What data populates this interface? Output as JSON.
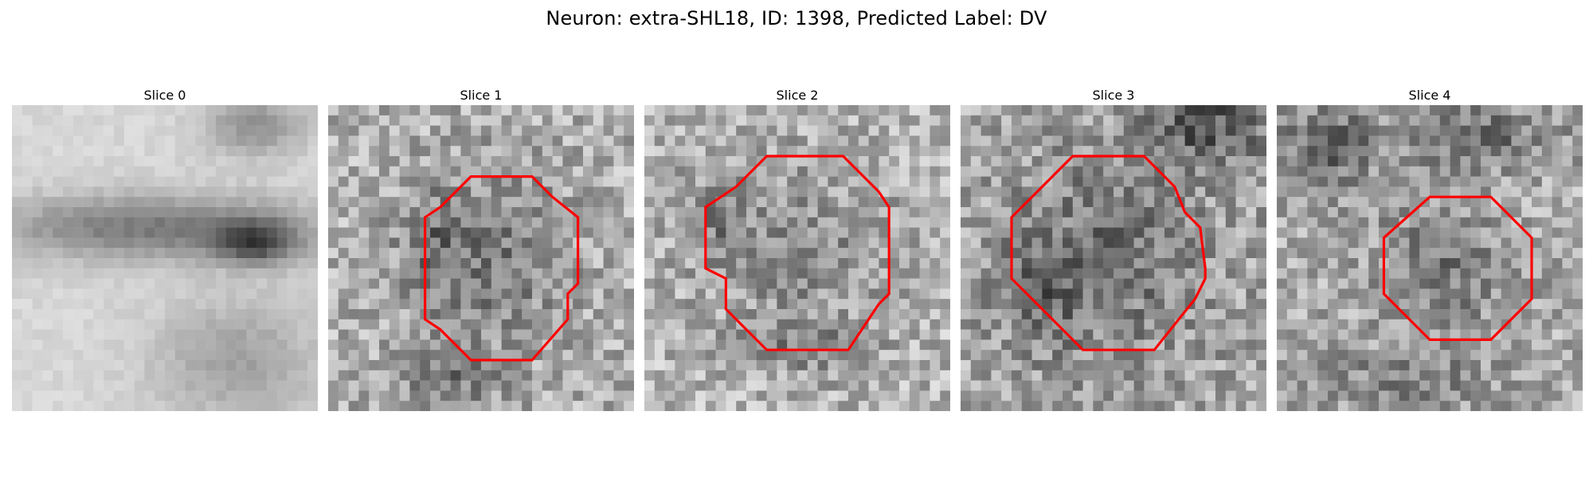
{
  "figure": {
    "title": "Neuron: extra-SHL18, ID: 1398, Predicted Label: DV"
  },
  "panels": [
    {
      "title": "Slice 0",
      "has_contour": false
    },
    {
      "title": "Slice 1",
      "has_contour": true
    },
    {
      "title": "Slice 2",
      "has_contour": true
    },
    {
      "title": "Slice 3",
      "has_contour": true
    },
    {
      "title": "Slice 4",
      "has_contour": true
    }
  ],
  "colors": {
    "contour": "#ff0000",
    "background": "#ffffff"
  }
}
